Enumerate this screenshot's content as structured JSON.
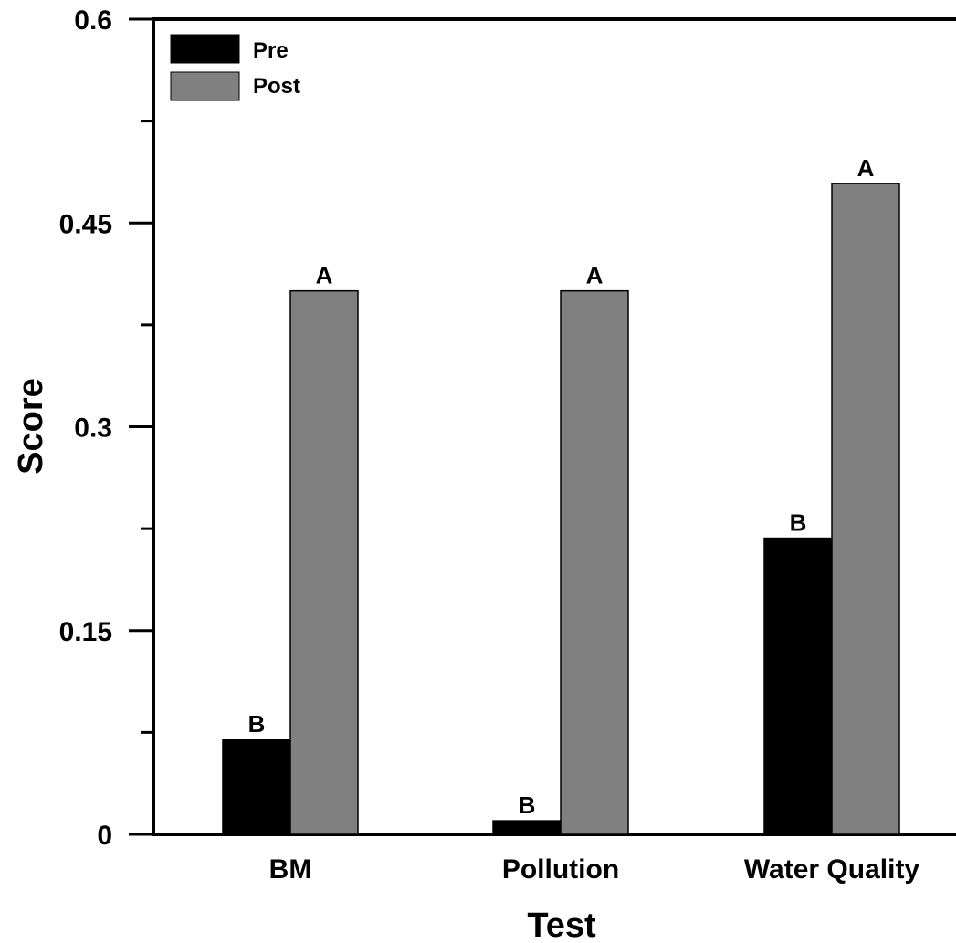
{
  "chart_data": {
    "type": "bar",
    "title": "",
    "xlabel": "Test",
    "ylabel": "Score",
    "categories": [
      "BM",
      "Pollution",
      "Water Quality"
    ],
    "series": [
      {
        "name": "Pre",
        "color": "#000000",
        "values": [
          0.07,
          0.01,
          0.218
        ],
        "labels": [
          "B",
          "B",
          "B"
        ]
      },
      {
        "name": "Post",
        "color": "#808080",
        "values": [
          0.4,
          0.4,
          0.479
        ],
        "labels": [
          "A",
          "A",
          "A"
        ]
      }
    ],
    "ylim": [
      0,
      0.6
    ],
    "yticks": [
      0,
      0.15,
      0.3,
      0.45,
      0.6
    ],
    "ytick_labels": [
      "0",
      "0.15",
      "0.3",
      "0.45",
      "0.6"
    ],
    "grid": false,
    "legend_position": "top-left"
  }
}
